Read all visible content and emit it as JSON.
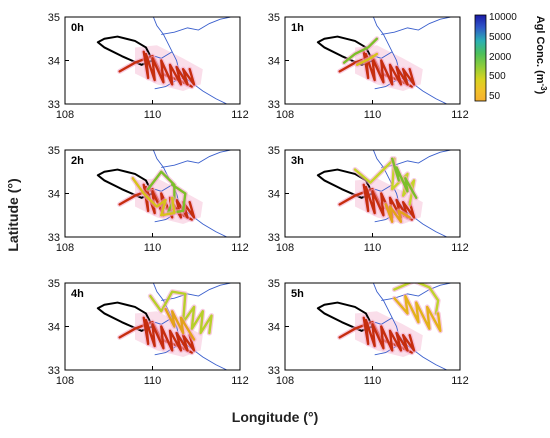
{
  "chart_data": [
    {
      "type": "line",
      "panel_label": "0h",
      "xlim": [
        108,
        112
      ],
      "ylim": [
        33,
        35
      ],
      "x_ticks": [
        "108",
        "110",
        "112"
      ],
      "y_ticks": [
        "33",
        "34",
        "35"
      ],
      "series": [
        {
          "color": "#000000",
          "x": [
            108.9,
            108.75,
            108.9,
            109.3,
            109.75,
            110.0,
            109.85,
            109.6,
            109.2,
            108.9
          ],
          "y": [
            34.5,
            34.42,
            34.3,
            34.1,
            33.9,
            34.0,
            34.3,
            34.45,
            34.55,
            34.5
          ]
        },
        {
          "color": "#c62d0e",
          "x": [
            109.25,
            109.6,
            110.0,
            110.2,
            110.6,
            110.9
          ],
          "y": [
            33.75,
            33.95,
            34.1,
            33.7,
            33.55,
            33.4
          ]
        },
        {
          "color": "#c62d0e",
          "x": [
            109.8,
            109.9,
            109.85,
            110.05,
            110.0,
            110.25,
            110.2,
            110.45,
            110.4,
            110.65,
            110.55,
            110.8,
            110.7,
            110.95,
            110.85
          ],
          "y": [
            34.2,
            33.6,
            34.15,
            33.55,
            34.05,
            33.5,
            34.0,
            33.45,
            33.9,
            33.45,
            33.85,
            33.45,
            33.8,
            33.45,
            33.8
          ]
        }
      ]
    },
    {
      "type": "line",
      "panel_label": "1h",
      "xlim": [
        108,
        112
      ],
      "ylim": [
        33,
        35
      ],
      "x_ticks": [
        "108",
        "110",
        "112"
      ],
      "y_ticks": [
        "33",
        "34",
        "35"
      ],
      "series": [
        {
          "color": "#000000",
          "x": [
            108.9,
            108.75,
            108.9,
            109.3,
            109.75,
            110.0,
            109.85,
            109.6,
            109.2,
            108.9
          ],
          "y": [
            34.5,
            34.42,
            34.3,
            34.1,
            33.9,
            34.0,
            34.3,
            34.45,
            34.55,
            34.5
          ]
        },
        {
          "color": "#c62d0e",
          "x": [
            109.25,
            109.6,
            110.0,
            110.2,
            110.6,
            110.9
          ],
          "y": [
            33.75,
            33.95,
            34.1,
            33.7,
            33.55,
            33.4
          ]
        },
        {
          "color": "#c62d0e",
          "x": [
            109.8,
            109.9,
            109.85,
            110.05,
            110.0,
            110.25,
            110.2,
            110.45,
            110.4,
            110.65,
            110.55,
            110.8,
            110.7,
            110.95,
            110.85
          ],
          "y": [
            34.2,
            33.6,
            34.15,
            33.55,
            34.05,
            33.5,
            34.0,
            33.45,
            33.9,
            33.45,
            33.85,
            33.45,
            33.8,
            33.45,
            33.8
          ]
        },
        {
          "color": "#7cbf2a",
          "x": [
            109.35,
            109.6,
            109.9,
            110.1
          ],
          "y": [
            33.95,
            34.15,
            34.3,
            34.5
          ]
        },
        {
          "color": "#d7c21b",
          "x": [
            109.65,
            109.95,
            110.1
          ],
          "y": [
            33.9,
            34.05,
            34.15
          ]
        }
      ]
    },
    {
      "type": "line",
      "panel_label": "2h",
      "xlim": [
        108,
        112
      ],
      "ylim": [
        33,
        35
      ],
      "x_ticks": [
        "108",
        "110",
        "112"
      ],
      "y_ticks": [
        "33",
        "34",
        "35"
      ],
      "series": [
        {
          "color": "#000000",
          "x": [
            108.9,
            108.75,
            108.9,
            109.3,
            109.75,
            110.0,
            109.85,
            109.6,
            109.2,
            108.9
          ],
          "y": [
            34.5,
            34.42,
            34.3,
            34.1,
            33.9,
            34.0,
            34.3,
            34.45,
            34.55,
            34.5
          ]
        },
        {
          "color": "#c62d0e",
          "x": [
            109.25,
            109.6,
            110.0,
            110.2,
            110.6,
            110.9
          ],
          "y": [
            33.75,
            33.95,
            34.1,
            33.7,
            33.55,
            33.4
          ]
        },
        {
          "color": "#c62d0e",
          "x": [
            109.8,
            109.9,
            109.85,
            110.05,
            110.0,
            110.25,
            110.2,
            110.45,
            110.4,
            110.65,
            110.55,
            110.8,
            110.7,
            110.95,
            110.85
          ],
          "y": [
            34.2,
            33.6,
            34.15,
            33.55,
            34.05,
            33.5,
            34.0,
            33.45,
            33.9,
            33.45,
            33.85,
            33.45,
            33.8,
            33.45,
            33.8
          ]
        },
        {
          "color": "#7cbf2a",
          "x": [
            109.9,
            110.2,
            110.5,
            110.5,
            110.35,
            110.7,
            110.75,
            110.45
          ],
          "y": [
            34.1,
            34.5,
            34.2,
            33.9,
            33.55,
            33.6,
            34.0,
            34.2
          ]
        },
        {
          "color": "#d7c21b",
          "x": [
            109.55,
            109.8,
            110.1,
            110.3,
            110.2,
            110.5,
            110.45
          ],
          "y": [
            34.35,
            34.0,
            33.7,
            33.85,
            33.5,
            33.55,
            33.9
          ]
        }
      ]
    },
    {
      "type": "line",
      "panel_label": "3h",
      "xlim": [
        108,
        112
      ],
      "ylim": [
        33,
        35
      ],
      "x_ticks": [
        "108",
        "110",
        "112"
      ],
      "y_ticks": [
        "33",
        "34",
        "35"
      ],
      "series": [
        {
          "color": "#000000",
          "x": [
            108.9,
            108.75,
            108.9,
            109.3,
            109.75,
            110.0,
            109.85,
            109.6,
            109.2,
            108.9
          ],
          "y": [
            34.5,
            34.42,
            34.3,
            34.1,
            33.9,
            34.0,
            34.3,
            34.45,
            34.55,
            34.5
          ]
        },
        {
          "color": "#c62d0e",
          "x": [
            109.25,
            109.6,
            110.0,
            110.2,
            110.6,
            110.9
          ],
          "y": [
            33.75,
            33.95,
            34.1,
            33.7,
            33.55,
            33.4
          ]
        },
        {
          "color": "#c62d0e",
          "x": [
            109.8,
            109.9,
            109.85,
            110.05,
            110.0,
            110.25,
            110.2,
            110.45,
            110.4,
            110.65,
            110.55,
            110.8,
            110.7,
            110.95,
            110.85
          ],
          "y": [
            34.2,
            33.6,
            34.15,
            33.55,
            34.05,
            33.5,
            34.0,
            33.45,
            33.9,
            33.45,
            33.85,
            33.45,
            33.8,
            33.45,
            33.8
          ]
        },
        {
          "color": "#c6d42a",
          "x": [
            109.6,
            109.95,
            110.3,
            110.5,
            110.45,
            110.8,
            110.7,
            110.95,
            110.85
          ],
          "y": [
            34.55,
            34.25,
            34.6,
            34.8,
            34.1,
            34.45,
            33.95,
            34.3,
            33.75
          ]
        },
        {
          "color": "#7cbf2a",
          "x": [
            110.45,
            110.6,
            110.55,
            110.8,
            110.75,
            111.0
          ],
          "y": [
            34.8,
            34.3,
            34.6,
            34.05,
            34.35,
            33.9
          ]
        },
        {
          "color": "#e3a21a",
          "x": [
            110.3,
            110.45,
            110.4,
            110.65,
            110.6,
            110.85
          ],
          "y": [
            33.75,
            33.35,
            33.7,
            33.35,
            33.6,
            33.45
          ]
        }
      ]
    },
    {
      "type": "line",
      "panel_label": "4h",
      "xlim": [
        108,
        112
      ],
      "ylim": [
        33,
        35
      ],
      "x_ticks": [
        "108",
        "110",
        "112"
      ],
      "y_ticks": [
        "33",
        "34",
        "35"
      ],
      "series": [
        {
          "color": "#000000",
          "x": [
            108.9,
            108.75,
            108.9,
            109.3,
            109.75,
            110.0,
            109.85,
            109.6,
            109.2,
            108.9
          ],
          "y": [
            34.5,
            34.42,
            34.3,
            34.1,
            33.9,
            34.0,
            34.3,
            34.45,
            34.55,
            34.5
          ]
        },
        {
          "color": "#c62d0e",
          "x": [
            109.25,
            109.6,
            110.0,
            110.2,
            110.6,
            110.9
          ],
          "y": [
            33.75,
            33.95,
            34.1,
            33.7,
            33.55,
            33.4
          ]
        },
        {
          "color": "#c62d0e",
          "x": [
            109.8,
            109.9,
            109.85,
            110.05,
            110.0,
            110.25,
            110.2,
            110.45,
            110.4,
            110.65,
            110.55,
            110.8,
            110.7,
            110.95,
            110.85
          ],
          "y": [
            34.2,
            33.6,
            34.15,
            33.55,
            34.05,
            33.5,
            34.0,
            33.45,
            33.9,
            33.45,
            33.85,
            33.45,
            33.8,
            33.45,
            33.8
          ]
        },
        {
          "color": "#b7cf2a",
          "x": [
            109.95,
            110.2,
            110.45,
            110.75,
            110.7,
            110.95,
            110.9,
            111.15,
            111.1,
            111.35,
            111.3
          ],
          "y": [
            34.7,
            34.35,
            34.8,
            34.75,
            34.1,
            34.45,
            33.95,
            34.35,
            33.85,
            34.25,
            33.85
          ]
        },
        {
          "color": "#e3a21a",
          "x": [
            110.3,
            110.5,
            110.45,
            110.7,
            110.65,
            110.95
          ],
          "y": [
            34.4,
            34.0,
            34.35,
            33.85,
            34.2,
            33.7
          ]
        }
      ]
    },
    {
      "type": "line",
      "panel_label": "5h",
      "xlim": [
        108,
        112
      ],
      "ylim": [
        33,
        35
      ],
      "x_ticks": [
        "108",
        "110",
        "112"
      ],
      "y_ticks": [
        "33",
        "34",
        "35"
      ],
      "series": [
        {
          "color": "#000000",
          "x": [
            108.9,
            108.75,
            108.9,
            109.3,
            109.75,
            110.0,
            109.85,
            109.6,
            109.2,
            108.9
          ],
          "y": [
            34.5,
            34.42,
            34.3,
            34.1,
            33.9,
            34.0,
            34.3,
            34.45,
            34.55,
            34.5
          ]
        },
        {
          "color": "#c62d0e",
          "x": [
            109.25,
            109.6,
            110.0,
            110.2,
            110.6,
            110.9
          ],
          "y": [
            33.75,
            33.95,
            34.1,
            33.7,
            33.55,
            33.4
          ]
        },
        {
          "color": "#c62d0e",
          "x": [
            109.8,
            109.9,
            109.85,
            110.05,
            110.0,
            110.25,
            110.2,
            110.45,
            110.4,
            110.65,
            110.55,
            110.8,
            110.7,
            110.95,
            110.85
          ],
          "y": [
            34.2,
            33.6,
            34.15,
            33.55,
            34.05,
            33.5,
            34.0,
            33.45,
            33.9,
            33.45,
            33.85,
            33.45,
            33.8,
            33.45,
            33.8
          ]
        },
        {
          "color": "#bfd32a",
          "x": [
            110.5,
            110.95,
            111.3,
            111.5,
            111.45
          ],
          "y": [
            34.85,
            35.05,
            34.9,
            34.6,
            34.3
          ]
        },
        {
          "color": "#e3b21a",
          "x": [
            110.5,
            110.8,
            110.75,
            111.05,
            111.0,
            111.3,
            111.25,
            111.55,
            111.5
          ],
          "y": [
            34.65,
            34.3,
            34.7,
            34.1,
            34.55,
            33.95,
            34.45,
            33.9,
            34.3
          ]
        }
      ]
    }
  ],
  "axes": {
    "xlabel": "Longitude (°)",
    "ylabel": "Latitude (°)"
  },
  "colorbar": {
    "title": "Agl Conc. (m",
    "title_superscript": "-3",
    "title_close": ")",
    "ticks": [
      "10000",
      "5000",
      "2000",
      "500",
      "50"
    ],
    "colors": [
      "#1b1aa6",
      "#2f55c8",
      "#2bb0b4",
      "#4dc05a",
      "#8fcd3a",
      "#d8d320",
      "#f2c12a",
      "#f6b030"
    ]
  },
  "style": {
    "river_color": "#3a5fcd",
    "region_fill": "#f5c3d8",
    "frame_color": "#000000"
  }
}
